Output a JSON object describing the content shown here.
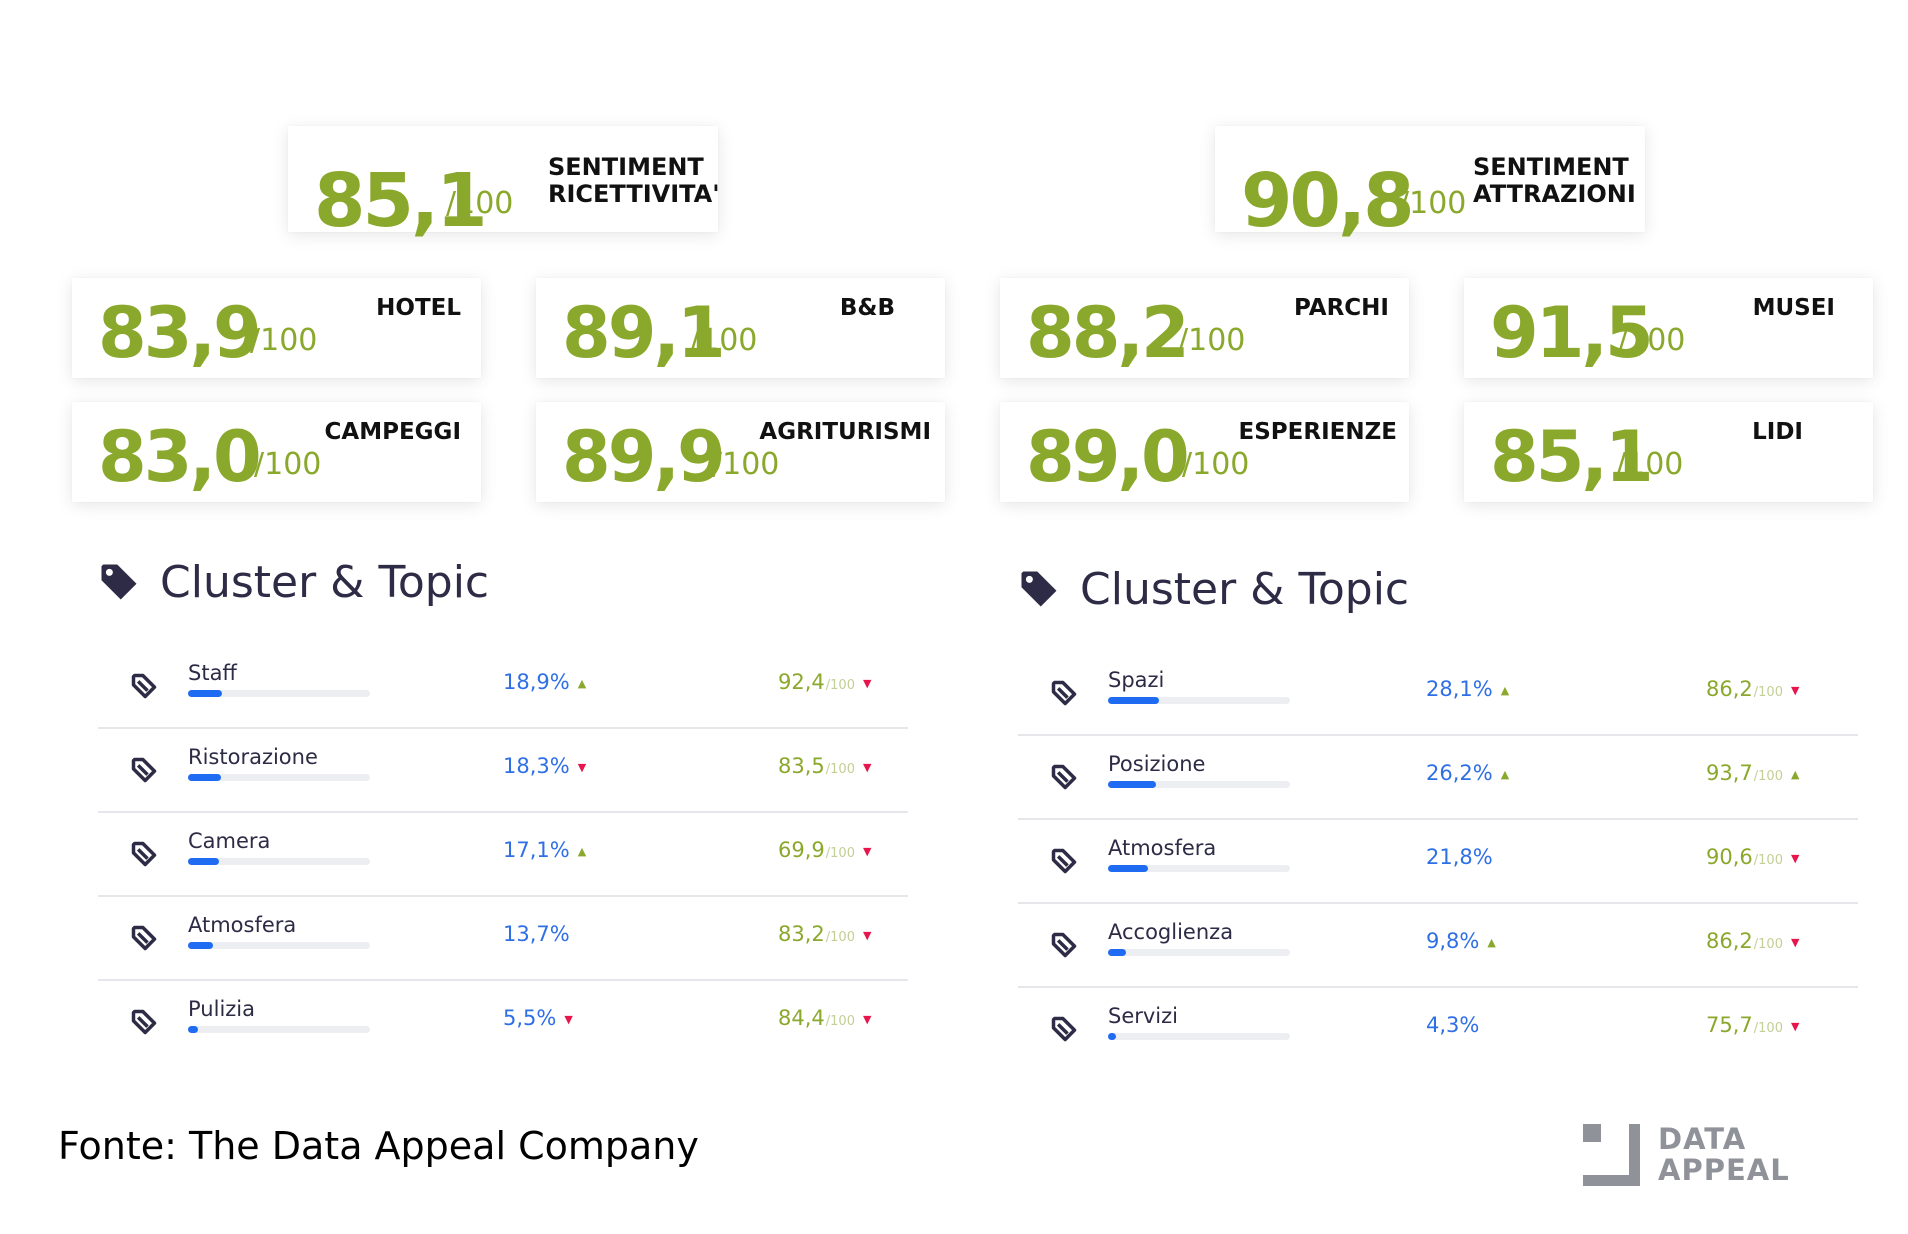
{
  "headline_cards": [
    {
      "value": "85,1",
      "denominator": "/100",
      "label_line1": "SENTIMENT",
      "label_line2": "RICETTIVITA'"
    },
    {
      "value": "90,8",
      "denominator": "/100",
      "label_line1": "SENTIMENT",
      "label_line2": "ATTRAZIONI"
    }
  ],
  "category_cards": [
    {
      "value": "83,9",
      "denominator": "/100",
      "label": "HOTEL"
    },
    {
      "value": "89,1",
      "denominator": "/100",
      "label": "B&B"
    },
    {
      "value": "88,2",
      "denominator": "/100",
      "label": "PARCHI"
    },
    {
      "value": "91,5",
      "denominator": "/100",
      "label": "MUSEI"
    },
    {
      "value": "83,0",
      "denominator": "/100",
      "label": "CAMPEGGI"
    },
    {
      "value": "89,9",
      "denominator": "/100",
      "label": "AGRITURISMI"
    },
    {
      "value": "89,0",
      "denominator": "/100",
      "label": "ESPERIENZE"
    },
    {
      "value": "85,1",
      "denominator": "/100",
      "label": "LIDI"
    }
  ],
  "clusters": [
    {
      "title": "Cluster & Topic",
      "icon": "tag-icon",
      "rows": [
        {
          "topic": "Staff",
          "share": "18,9%",
          "share_fraction": 0.189,
          "share_trend": "up",
          "score": "92,4",
          "score_den": "/100",
          "score_trend": "down"
        },
        {
          "topic": "Ristorazione",
          "share": "18,3%",
          "share_fraction": 0.183,
          "share_trend": "down",
          "score": "83,5",
          "score_den": "/100",
          "score_trend": "down"
        },
        {
          "topic": "Camera",
          "share": "17,1%",
          "share_fraction": 0.171,
          "share_trend": "up",
          "score": "69,9",
          "score_den": "/100",
          "score_trend": "down"
        },
        {
          "topic": "Atmosfera",
          "share": "13,7%",
          "share_fraction": 0.137,
          "share_trend": "",
          "score": "83,2",
          "score_den": "/100",
          "score_trend": "down"
        },
        {
          "topic": "Pulizia",
          "share": "5,5%",
          "share_fraction": 0.055,
          "share_trend": "down",
          "score": "84,4",
          "score_den": "/100",
          "score_trend": "down"
        }
      ]
    },
    {
      "title": "Cluster & Topic",
      "icon": "tag-icon",
      "rows": [
        {
          "topic": "Spazi",
          "share": "28,1%",
          "share_fraction": 0.281,
          "share_trend": "up",
          "score": "86,2",
          "score_den": "/100",
          "score_trend": "down"
        },
        {
          "topic": "Posizione",
          "share": "26,2%",
          "share_fraction": 0.262,
          "share_trend": "up",
          "score": "93,7",
          "score_den": "/100",
          "score_trend": "up"
        },
        {
          "topic": "Atmosfera",
          "share": "21,8%",
          "share_fraction": 0.218,
          "share_trend": "",
          "score": "90,6",
          "score_den": "/100",
          "score_trend": "down"
        },
        {
          "topic": "Accoglienza",
          "share": "9,8%",
          "share_fraction": 0.098,
          "share_trend": "up",
          "score": "86,2",
          "score_den": "/100",
          "score_trend": "down"
        },
        {
          "topic": "Servizi",
          "share": "4,3%",
          "share_fraction": 0.043,
          "share_trend": "",
          "score": "75,7",
          "score_den": "/100",
          "score_trend": "down"
        }
      ]
    }
  ],
  "arrows": {
    "up": "▲",
    "down": "▼"
  },
  "source": "Fonte: The Data Appeal Company",
  "logo": {
    "line1": "DATA",
    "line2": "APPEAL"
  },
  "colors": {
    "score_green": "#8aa82b",
    "share_blue": "#2f6fe6",
    "bar_blue": "#1f6cf2",
    "down_red": "#e8154d",
    "dark": "#2d2b45"
  }
}
